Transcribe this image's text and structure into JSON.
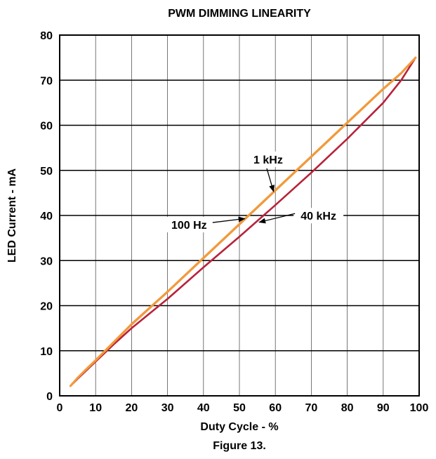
{
  "chart_data": {
    "type": "line",
    "title": "PWM DIMMING LINEARITY",
    "xlabel": "Duty Cycle - %",
    "ylabel": "LED Current - mA",
    "caption": "Figure 13.",
    "xlim": [
      0,
      100
    ],
    "ylim": [
      0,
      80
    ],
    "xticks": [
      0,
      10,
      20,
      30,
      40,
      50,
      60,
      70,
      80,
      90,
      100
    ],
    "yticks": [
      0,
      10,
      20,
      30,
      40,
      50,
      60,
      70,
      80
    ],
    "grid": true,
    "series": [
      {
        "name": "100 Hz",
        "color": "#e8862a",
        "x": [
          3,
          5,
          7,
          10,
          15,
          20,
          30,
          40,
          50,
          60,
          70,
          80,
          90,
          95,
          99
        ],
        "y": [
          2.2,
          4.0,
          5.5,
          7.8,
          11.8,
          15.8,
          23.0,
          30.5,
          38.0,
          45.5,
          53.0,
          60.5,
          68.0,
          71.5,
          75.0
        ]
      },
      {
        "name": "1 kHz",
        "color": "#f29a3a",
        "x": [
          3,
          5,
          7,
          10,
          15,
          20,
          30,
          40,
          50,
          60,
          70,
          80,
          90,
          95,
          99
        ],
        "y": [
          2.2,
          4.0,
          5.6,
          7.9,
          11.9,
          15.9,
          23.1,
          30.6,
          38.1,
          45.6,
          53.1,
          60.6,
          68.1,
          71.6,
          75.0
        ]
      },
      {
        "name": "40 kHz",
        "color": "#b8223a",
        "x": [
          3,
          5,
          7,
          10,
          15,
          20,
          30,
          40,
          50,
          60,
          70,
          80,
          90,
          95,
          99
        ],
        "y": [
          2.2,
          3.8,
          5.3,
          7.6,
          11.4,
          15.0,
          21.5,
          28.5,
          35.3,
          42.3,
          49.5,
          57.0,
          65.0,
          70.0,
          75.0
        ]
      }
    ],
    "annotations": [
      {
        "text": "1 kHz",
        "series": "1 kHz",
        "text_at": [
          58,
          52
        ],
        "arrow_to": [
          59.5,
          45.3
        ]
      },
      {
        "text": "100 Hz",
        "series": "100 Hz",
        "text_at": [
          36,
          37.5
        ],
        "arrow_to": [
          51.5,
          39.3
        ]
      },
      {
        "text": "40 kHz",
        "series": "40 kHz",
        "text_at": [
          72,
          39.5
        ],
        "arrow_to": [
          55.5,
          38.5
        ]
      }
    ]
  }
}
